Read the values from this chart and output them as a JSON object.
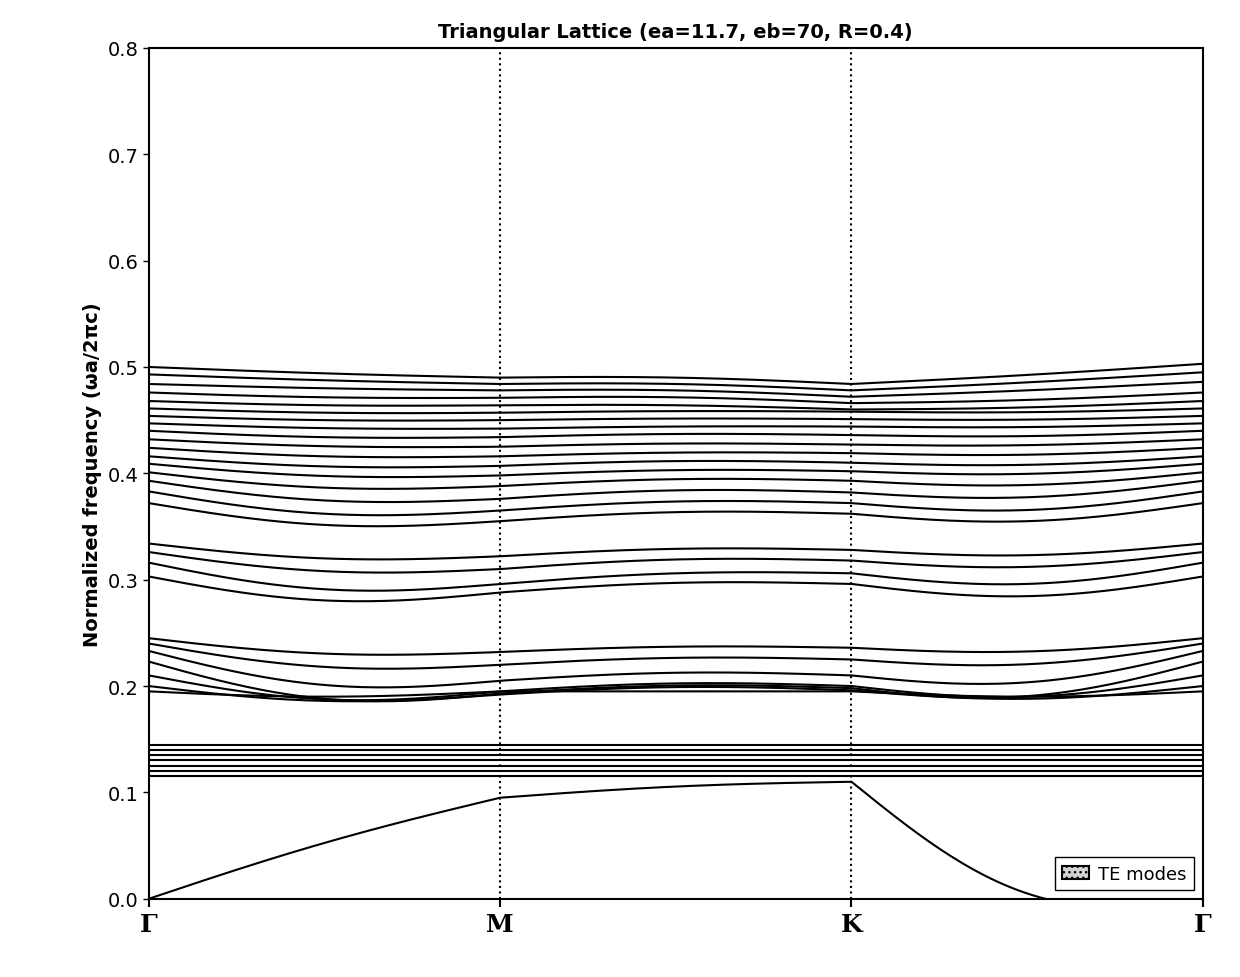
{
  "title": "Triangular Lattice (ea=11.7, eb=70, R=0.4)",
  "ylabel": "Normalized frequency (ωa/2πc)",
  "xlabel_ticks": [
    "Γ",
    "M",
    "K",
    "Γ"
  ],
  "ylim": [
    0,
    0.8
  ],
  "yticks": [
    0.0,
    0.1,
    0.2,
    0.3,
    0.4,
    0.5,
    0.6,
    0.7,
    0.8
  ],
  "legend_text": "TE modes",
  "vline_positions": [
    1,
    2
  ],
  "background_color": "#ffffff",
  "line_color": "#000000",
  "line_width": 1.5,
  "figsize": [
    12.4,
    9.78
  ],
  "dpi": 100,
  "bands": [
    {
      "g1": 0.0,
      "m": 0.095,
      "k": 0.11,
      "g2": 0.0,
      "c1": 0.005,
      "c2": 0.003,
      "c3": -0.05
    },
    {
      "g1": 0.115,
      "m": 0.115,
      "k": 0.115,
      "g2": 0.115,
      "c1": 0.0,
      "c2": 0.0,
      "c3": 0.0
    },
    {
      "g1": 0.12,
      "m": 0.12,
      "k": 0.12,
      "g2": 0.12,
      "c1": 0.0,
      "c2": 0.0,
      "c3": 0.0
    },
    {
      "g1": 0.125,
      "m": 0.125,
      "k": 0.125,
      "g2": 0.125,
      "c1": 0.0,
      "c2": 0.0,
      "c3": 0.0
    },
    {
      "g1": 0.13,
      "m": 0.13,
      "k": 0.13,
      "g2": 0.13,
      "c1": 0.0,
      "c2": 0.0,
      "c3": 0.0
    },
    {
      "g1": 0.135,
      "m": 0.135,
      "k": 0.135,
      "g2": 0.135,
      "c1": 0.0,
      "c2": 0.0,
      "c3": 0.0
    },
    {
      "g1": 0.14,
      "m": 0.14,
      "k": 0.14,
      "g2": 0.14,
      "c1": 0.0,
      "c2": 0.0,
      "c3": 0.0
    },
    {
      "g1": 0.145,
      "m": 0.145,
      "k": 0.145,
      "g2": 0.145,
      "c1": 0.0,
      "c2": 0.0,
      "c3": 0.0
    },
    {
      "g1": 0.195,
      "m": 0.195,
      "k": 0.195,
      "g2": 0.195,
      "c1": -0.005,
      "c2": 0.0,
      "c3": -0.005
    },
    {
      "g1": 0.2,
      "m": 0.192,
      "k": 0.196,
      "g2": 0.2,
      "c1": -0.01,
      "c2": 0.005,
      "c3": -0.01
    },
    {
      "g1": 0.21,
      "m": 0.195,
      "k": 0.2,
      "g2": 0.21,
      "c1": -0.015,
      "c2": 0.005,
      "c3": -0.015
    },
    {
      "g1": 0.223,
      "m": 0.193,
      "k": 0.198,
      "g2": 0.223,
      "c1": -0.02,
      "c2": 0.005,
      "c3": -0.02
    },
    {
      "g1": 0.233,
      "m": 0.205,
      "k": 0.21,
      "g2": 0.233,
      "c1": -0.018,
      "c2": 0.005,
      "c3": -0.018
    },
    {
      "g1": 0.24,
      "m": 0.22,
      "k": 0.225,
      "g2": 0.24,
      "c1": -0.012,
      "c2": 0.004,
      "c3": -0.012
    },
    {
      "g1": 0.245,
      "m": 0.232,
      "k": 0.236,
      "g2": 0.245,
      "c1": -0.008,
      "c2": 0.003,
      "c3": -0.008
    },
    {
      "g1": 0.303,
      "m": 0.288,
      "k": 0.296,
      "g2": 0.303,
      "c1": -0.015,
      "c2": 0.005,
      "c3": -0.015
    },
    {
      "g1": 0.316,
      "m": 0.296,
      "k": 0.306,
      "g2": 0.316,
      "c1": -0.015,
      "c2": 0.005,
      "c3": -0.015
    },
    {
      "g1": 0.326,
      "m": 0.31,
      "k": 0.318,
      "g2": 0.326,
      "c1": -0.01,
      "c2": 0.005,
      "c3": -0.01
    },
    {
      "g1": 0.334,
      "m": 0.322,
      "k": 0.328,
      "g2": 0.334,
      "c1": -0.008,
      "c2": 0.004,
      "c3": -0.008
    },
    {
      "g1": 0.372,
      "m": 0.355,
      "k": 0.362,
      "g2": 0.372,
      "c1": -0.012,
      "c2": 0.005,
      "c3": -0.012
    },
    {
      "g1": 0.383,
      "m": 0.365,
      "k": 0.372,
      "g2": 0.383,
      "c1": -0.012,
      "c2": 0.005,
      "c3": -0.012
    },
    {
      "g1": 0.393,
      "m": 0.376,
      "k": 0.382,
      "g2": 0.393,
      "c1": -0.01,
      "c2": 0.005,
      "c3": -0.01
    },
    {
      "g1": 0.401,
      "m": 0.388,
      "k": 0.393,
      "g2": 0.401,
      "c1": -0.008,
      "c2": 0.004,
      "c3": -0.008
    },
    {
      "g1": 0.409,
      "m": 0.398,
      "k": 0.402,
      "g2": 0.409,
      "c1": -0.006,
      "c2": 0.003,
      "c3": -0.006
    },
    {
      "g1": 0.416,
      "m": 0.407,
      "k": 0.41,
      "g2": 0.416,
      "c1": -0.005,
      "c2": 0.003,
      "c3": -0.005
    },
    {
      "g1": 0.424,
      "m": 0.416,
      "k": 0.419,
      "g2": 0.424,
      "c1": -0.004,
      "c2": 0.002,
      "c3": -0.004
    },
    {
      "g1": 0.432,
      "m": 0.425,
      "k": 0.427,
      "g2": 0.432,
      "c1": -0.003,
      "c2": 0.002,
      "c3": -0.003
    },
    {
      "g1": 0.44,
      "m": 0.434,
      "k": 0.436,
      "g2": 0.44,
      "c1": -0.003,
      "c2": 0.002,
      "c3": -0.003
    },
    {
      "g1": 0.447,
      "m": 0.442,
      "k": 0.444,
      "g2": 0.447,
      "c1": -0.002,
      "c2": 0.001,
      "c3": -0.002
    },
    {
      "g1": 0.454,
      "m": 0.45,
      "k": 0.451,
      "g2": 0.454,
      "c1": -0.002,
      "c2": 0.001,
      "c3": -0.002
    },
    {
      "g1": 0.461,
      "m": 0.457,
      "k": 0.458,
      "g2": 0.461,
      "c1": -0.002,
      "c2": 0.001,
      "c3": -0.002
    },
    {
      "g1": 0.468,
      "m": 0.464,
      "k": 0.46,
      "g2": 0.468,
      "c1": -0.002,
      "c2": 0.002,
      "c3": -0.002
    },
    {
      "g1": 0.476,
      "m": 0.471,
      "k": 0.466,
      "g2": 0.476,
      "c1": -0.002,
      "c2": 0.003,
      "c3": -0.002
    },
    {
      "g1": 0.484,
      "m": 0.478,
      "k": 0.472,
      "g2": 0.486,
      "c1": -0.001,
      "c2": 0.003,
      "c3": -0.001
    },
    {
      "g1": 0.493,
      "m": 0.484,
      "k": 0.478,
      "g2": 0.495,
      "c1": -0.001,
      "c2": 0.003,
      "c3": -0.001
    },
    {
      "g1": 0.5,
      "m": 0.49,
      "k": 0.484,
      "g2": 0.503,
      "c1": -0.001,
      "c2": 0.003,
      "c3": -0.001
    }
  ]
}
